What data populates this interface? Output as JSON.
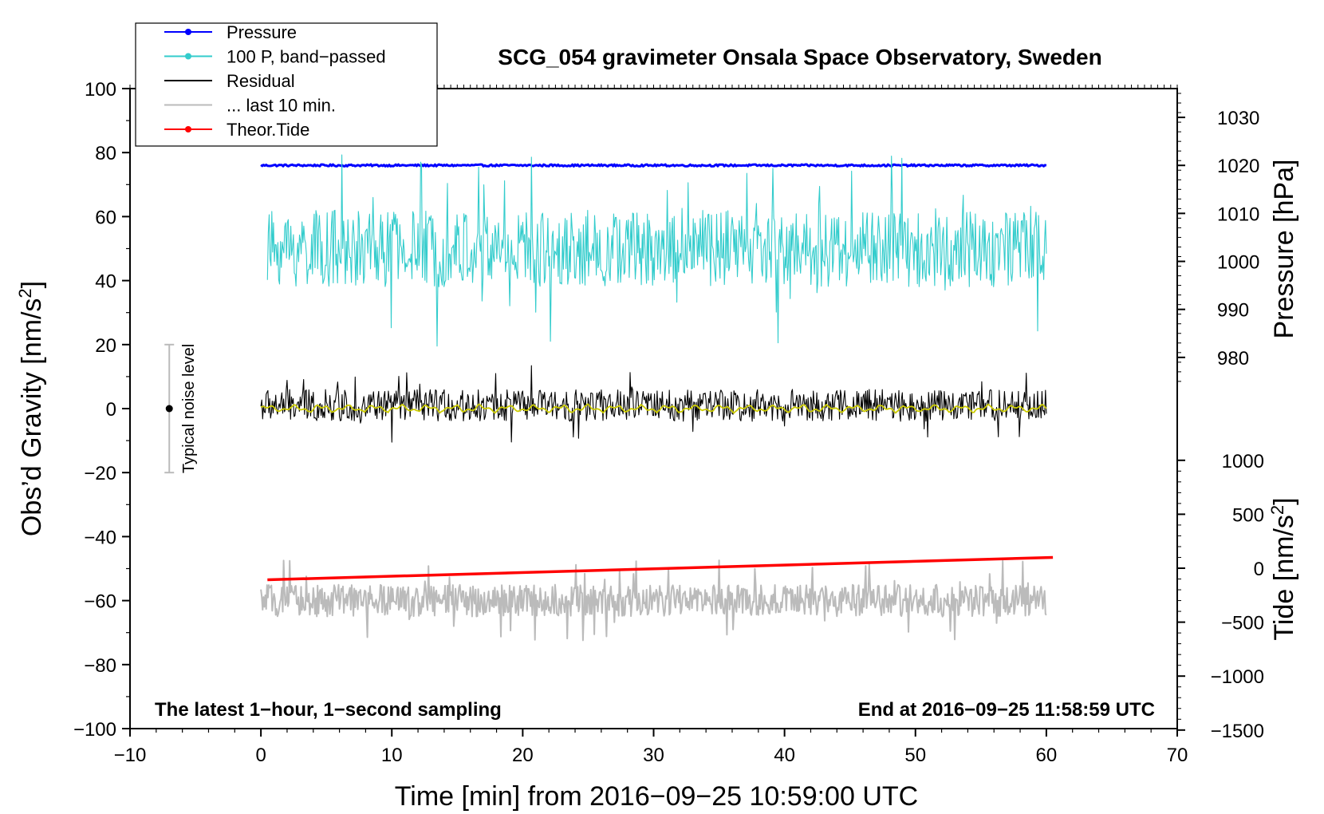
{
  "chart_data": {
    "type": "line",
    "title": "SCG_054 gravimeter Onsala Space Observatory, Sweden",
    "xlabel": "Time [min] from 2016−09−25 10:59:00 UTC",
    "ylabel_left": "Obs’d Gravity [nm/s",
    "ylabel_left_sup": "2",
    "ylabel_left_tail": "]",
    "ylabel_right_pressure": "Pressure [hPa]",
    "ylabel_right_tide": "Tide [nm/s",
    "ylabel_right_tide_sup": "2",
    "ylabel_right_tide_tail": "]",
    "xlim": [
      -10,
      70
    ],
    "ylim": [
      -100,
      100
    ],
    "x_ticks": [
      {
        "value": -10,
        "label": "−10"
      },
      {
        "value": 0,
        "label": "0"
      },
      {
        "value": 10,
        "label": "10"
      },
      {
        "value": 20,
        "label": "20"
      },
      {
        "value": 30,
        "label": "30"
      },
      {
        "value": 40,
        "label": "40"
      },
      {
        "value": 50,
        "label": "50"
      },
      {
        "value": 60,
        "label": "60"
      },
      {
        "value": 70,
        "label": "70"
      }
    ],
    "y_ticks": [
      {
        "value": 100,
        "label": "100"
      },
      {
        "value": 80,
        "label": "80"
      },
      {
        "value": 60,
        "label": "60"
      },
      {
        "value": 40,
        "label": "40"
      },
      {
        "value": 20,
        "label": "20"
      },
      {
        "value": 0,
        "label": "0"
      },
      {
        "value": -20,
        "label": "−20"
      },
      {
        "value": -40,
        "label": "−40"
      },
      {
        "value": -60,
        "label": "−60"
      },
      {
        "value": -80,
        "label": "−80"
      },
      {
        "value": -100,
        "label": "−100"
      }
    ],
    "pressure_axis": {
      "comment_mapping": "left-axis y = 76 + (hPa - 1020) * 1.5",
      "ticks": [
        {
          "value": 1030,
          "label": "1030"
        },
        {
          "value": 1020,
          "label": "1020"
        },
        {
          "value": 1010,
          "label": "1010"
        },
        {
          "value": 1000,
          "label": "1000"
        },
        {
          "value": 990,
          "label": "990"
        },
        {
          "value": 980,
          "label": "980"
        }
      ]
    },
    "tide_axis": {
      "ticks": [
        {
          "value": 1000,
          "label": "1000"
        },
        {
          "value": 500,
          "label": "500"
        },
        {
          "value": 0,
          "label": "0"
        },
        {
          "value": -500,
          "label": "−500"
        },
        {
          "value": -1000,
          "label": "−1000"
        },
        {
          "value": -1500,
          "label": "−1500"
        }
      ]
    },
    "series": [
      {
        "name": "Pressure",
        "color": "#0000ff",
        "kind": "flat",
        "level": 76,
        "noise": 0.3,
        "start": 0,
        "end": 60,
        "marker": true
      },
      {
        "name": "100 P, band−passed",
        "color": "#33cccc",
        "kind": "noise",
        "level": 50,
        "amp": 12,
        "start": 0.5,
        "end": 60,
        "marker": true
      },
      {
        "name": "Residual",
        "color": "#000000",
        "kind": "noise",
        "level": 1,
        "amp": 5,
        "start": 0,
        "end": 60,
        "marker": false
      },
      {
        "name": "... last 10 min.",
        "color": "#bbbbbb",
        "kind": "noise",
        "level": -60,
        "amp": 5,
        "start": 0,
        "end": 60,
        "marker": false
      },
      {
        "name": "Theor.Tide",
        "color": "#ff0000",
        "kind": "linear",
        "y0": -53.5,
        "y1": -46.5,
        "start": 0.5,
        "end": 60.5,
        "marker": true
      },
      {
        "name": "smoothed residual",
        "color": "#cccc00",
        "kind": "smooth",
        "level": 0,
        "amp": 1.5,
        "start": 0,
        "end": 60,
        "legend": false
      }
    ],
    "noise_level": {
      "label": "Typical noise level",
      "x": -7,
      "y": 0,
      "low": -20,
      "high": 20
    },
    "notes": {
      "left": "The latest 1−hour, 1−second sampling",
      "right": "End at 2016−09−25 11:58:59 UTC"
    },
    "legend_position": "top-left"
  }
}
